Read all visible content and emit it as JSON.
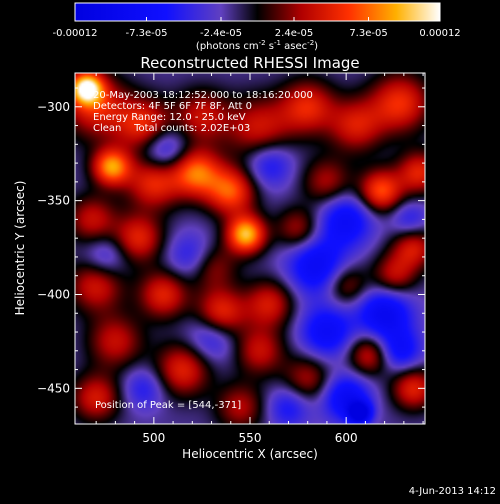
{
  "chart_data": {
    "type": "heatmap",
    "title": "Reconstructed RHESSI Image",
    "xlabel": "Heliocentric X (arcsec)",
    "ylabel": "Heliocentric Y (arcsec)",
    "xlim": [
      459,
      641
    ],
    "ylim": [
      -469,
      -282
    ],
    "x_ticks": [
      500,
      550,
      600
    ],
    "y_ticks": [
      -300,
      -350,
      -400,
      -450
    ],
    "colorbar": {
      "tick_labels": [
        "-0.00012",
        "-7.3e-05",
        "-2.4e-05",
        "2.4e-05",
        "7.3e-05",
        "0.00012"
      ],
      "tick_values": [
        -0.00012,
        -7.3e-05,
        -2.4e-05,
        2.4e-05,
        7.3e-05,
        0.00012
      ],
      "range": [
        -0.00012,
        0.00012
      ],
      "unit_label_parts": [
        "(photons cm",
        "-2",
        " s",
        "-1",
        " asec",
        "-2",
        ")"
      ]
    },
    "annotations": [
      "20-May-2003 18:12:52.000 to 18:16:20.000",
      "Detectors: 4F 5F 6F 7F 8F, Att 0",
      "Energy Range: 12.0 - 25.0 keV",
      "Clean    Total counts: 2.02E+03"
    ],
    "peak_label": "Position of Peak = [544,-371]",
    "peak": [
      544,
      -371
    ],
    "blobs": [
      {
        "x": 465,
        "y": -290,
        "v": 1.0,
        "s": 6
      },
      {
        "x": 470,
        "y": -300,
        "v": 0.55,
        "s": 12
      },
      {
        "x": 495,
        "y": -310,
        "v": 0.6,
        "s": 10
      },
      {
        "x": 525,
        "y": -305,
        "v": 0.45,
        "s": 10
      },
      {
        "x": 555,
        "y": -312,
        "v": 0.5,
        "s": 12
      },
      {
        "x": 580,
        "y": -300,
        "v": 0.55,
        "s": 10
      },
      {
        "x": 605,
        "y": -310,
        "v": 0.5,
        "s": 10
      },
      {
        "x": 628,
        "y": -298,
        "v": 0.6,
        "s": 11
      },
      {
        "x": 478,
        "y": -332,
        "v": 0.85,
        "s": 7
      },
      {
        "x": 500,
        "y": -340,
        "v": 0.6,
        "s": 10
      },
      {
        "x": 522,
        "y": -335,
        "v": 0.75,
        "s": 9
      },
      {
        "x": 540,
        "y": -345,
        "v": 0.7,
        "s": 9
      },
      {
        "x": 590,
        "y": -340,
        "v": 0.4,
        "s": 9
      },
      {
        "x": 618,
        "y": -345,
        "v": 0.7,
        "s": 8
      },
      {
        "x": 638,
        "y": -335,
        "v": 0.55,
        "s": 8
      },
      {
        "x": 468,
        "y": -360,
        "v": 0.45,
        "s": 9
      },
      {
        "x": 492,
        "y": -370,
        "v": 0.55,
        "s": 9
      },
      {
        "x": 548,
        "y": -368,
        "v": 0.95,
        "s": 7
      },
      {
        "x": 530,
        "y": -385,
        "v": 0.4,
        "s": 9
      },
      {
        "x": 575,
        "y": -365,
        "v": 0.4,
        "s": 8
      },
      {
        "x": 635,
        "y": -375,
        "v": 0.5,
        "s": 8
      },
      {
        "x": 470,
        "y": -395,
        "v": 0.5,
        "s": 10
      },
      {
        "x": 505,
        "y": -400,
        "v": 0.55,
        "s": 9
      },
      {
        "x": 535,
        "y": -410,
        "v": 0.6,
        "s": 9
      },
      {
        "x": 560,
        "y": -405,
        "v": 0.5,
        "s": 9
      },
      {
        "x": 600,
        "y": -395,
        "v": 0.4,
        "s": 8
      },
      {
        "x": 625,
        "y": -390,
        "v": 0.45,
        "s": 8
      },
      {
        "x": 480,
        "y": -425,
        "v": 0.45,
        "s": 10
      },
      {
        "x": 515,
        "y": -440,
        "v": 0.55,
        "s": 10
      },
      {
        "x": 555,
        "y": -430,
        "v": 0.45,
        "s": 9
      },
      {
        "x": 580,
        "y": -445,
        "v": 0.4,
        "s": 9
      },
      {
        "x": 612,
        "y": -432,
        "v": 0.5,
        "s": 8
      },
      {
        "x": 635,
        "y": -450,
        "v": 0.55,
        "s": 8
      },
      {
        "x": 470,
        "y": -455,
        "v": 0.5,
        "s": 9
      },
      {
        "x": 545,
        "y": -460,
        "v": 0.4,
        "s": 9
      },
      {
        "x": 505,
        "y": -323,
        "v": -0.45,
        "s": 9
      },
      {
        "x": 560,
        "y": -330,
        "v": -0.4,
        "s": 9
      },
      {
        "x": 600,
        "y": -360,
        "v": -0.5,
        "s": 10
      },
      {
        "x": 585,
        "y": -385,
        "v": -0.55,
        "s": 11
      },
      {
        "x": 620,
        "y": -410,
        "v": -0.6,
        "s": 10
      },
      {
        "x": 590,
        "y": -420,
        "v": -0.5,
        "s": 10
      },
      {
        "x": 520,
        "y": -380,
        "v": -0.35,
        "s": 9
      },
      {
        "x": 475,
        "y": -380,
        "v": -0.3,
        "s": 8
      },
      {
        "x": 530,
        "y": -423,
        "v": -0.35,
        "s": 9
      },
      {
        "x": 600,
        "y": -455,
        "v": -0.55,
        "s": 9
      },
      {
        "x": 607,
        "y": -463,
        "v": -1.0,
        "s": 4
      },
      {
        "x": 628,
        "y": -430,
        "v": -0.45,
        "s": 8
      },
      {
        "x": 570,
        "y": -460,
        "v": -0.35,
        "s": 8
      },
      {
        "x": 495,
        "y": -450,
        "v": -0.3,
        "s": 8
      },
      {
        "x": 633,
        "y": -360,
        "v": -0.3,
        "s": 7
      }
    ]
  },
  "footer": {
    "date": "4-Jun-2013 14:12"
  }
}
